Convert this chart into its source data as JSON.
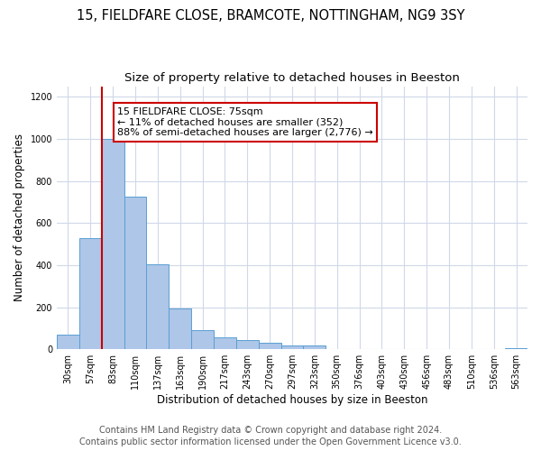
{
  "title": "15, FIELDFARE CLOSE, BRAMCOTE, NOTTINGHAM, NG9 3SY",
  "subtitle": "Size of property relative to detached houses in Beeston",
  "xlabel": "Distribution of detached houses by size in Beeston",
  "ylabel": "Number of detached properties",
  "bar_labels": [
    "30sqm",
    "57sqm",
    "83sqm",
    "110sqm",
    "137sqm",
    "163sqm",
    "190sqm",
    "217sqm",
    "243sqm",
    "270sqm",
    "297sqm",
    "323sqm",
    "350sqm",
    "376sqm",
    "403sqm",
    "430sqm",
    "456sqm",
    "483sqm",
    "510sqm",
    "536sqm",
    "563sqm"
  ],
  "bar_values": [
    70,
    530,
    1000,
    725,
    405,
    195,
    90,
    58,
    42,
    30,
    18,
    18,
    0,
    0,
    0,
    0,
    0,
    0,
    0,
    0,
    5
  ],
  "bar_color": "#aec6e8",
  "bar_edge_color": "#5a9fd4",
  "annotation_text_line1": "15 FIELDFARE CLOSE: 75sqm",
  "annotation_text_line2": "← 11% of detached houses are smaller (352)",
  "annotation_text_line3": "88% of semi-detached houses are larger (2,776) →",
  "annotation_box_color": "#ffffff",
  "annotation_box_edge_color": "#cc0000",
  "ylim": [
    0,
    1250
  ],
  "yticks": [
    0,
    200,
    400,
    600,
    800,
    1000,
    1200
  ],
  "footer_line1": "Contains HM Land Registry data © Crown copyright and database right 2024.",
  "footer_line2": "Contains public sector information licensed under the Open Government Licence v3.0.",
  "background_color": "#ffffff",
  "grid_color": "#d0d8e8",
  "title_fontsize": 10.5,
  "subtitle_fontsize": 9.5,
  "xlabel_fontsize": 8.5,
  "ylabel_fontsize": 8.5,
  "tick_fontsize": 7,
  "footer_fontsize": 7,
  "annot_fontsize": 8
}
